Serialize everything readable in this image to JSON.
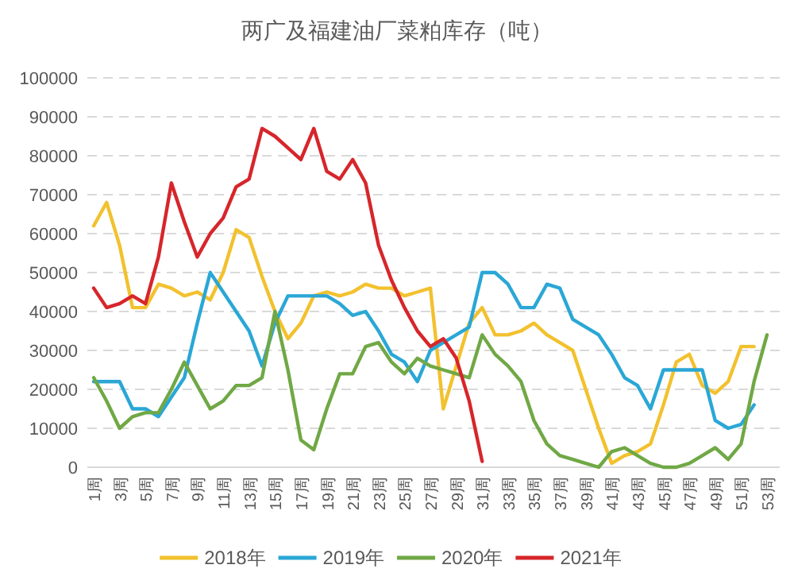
{
  "chart_data": {
    "type": "line",
    "title": "两广及福建油厂菜粕库存（吨）",
    "categories": [
      "1周",
      null,
      "3周",
      null,
      "5周",
      null,
      "7周",
      null,
      "9周",
      null,
      "11周",
      null,
      "13周",
      null,
      "15周",
      null,
      "17周",
      null,
      "19周",
      null,
      "21周",
      null,
      "23周",
      null,
      "25周",
      null,
      "27周",
      null,
      "29周",
      null,
      "31周",
      null,
      "33周",
      null,
      "35周",
      null,
      "37周",
      null,
      "39周",
      null,
      "41周",
      null,
      "43周",
      null,
      "45周",
      null,
      "47周",
      null,
      "49周",
      null,
      "51周",
      null,
      "53周"
    ],
    "series": [
      {
        "name": "2018年",
        "color": "#f2c12e",
        "values": [
          62000,
          68000,
          57000,
          41000,
          41000,
          47000,
          46000,
          44000,
          45000,
          43000,
          50000,
          61000,
          59000,
          49000,
          40000,
          33000,
          37000,
          44000,
          45000,
          44000,
          45000,
          47000,
          46000,
          46000,
          44000,
          45000,
          46000,
          15000,
          26000,
          37000,
          41000,
          34000,
          34000,
          35000,
          37000,
          34000,
          32000,
          30000,
          20000,
          10000,
          1000,
          3000,
          4000,
          6000,
          16000,
          27000,
          29000,
          21000,
          19000,
          22000,
          31000,
          31000,
          null
        ]
      },
      {
        "name": "2019年",
        "color": "#2aa7d6",
        "values": [
          22000,
          22000,
          22000,
          15000,
          15000,
          13000,
          18000,
          23000,
          37000,
          50000,
          45000,
          40000,
          35000,
          26000,
          37000,
          44000,
          44000,
          44000,
          44000,
          42000,
          39000,
          40000,
          35000,
          29000,
          27000,
          22000,
          30000,
          32000,
          34000,
          36000,
          50000,
          50000,
          47000,
          41000,
          41000,
          47000,
          46000,
          38000,
          36000,
          34000,
          29000,
          23000,
          21000,
          15000,
          25000,
          25000,
          25000,
          25000,
          12000,
          10000,
          11000,
          16000,
          null
        ]
      },
      {
        "name": "2020年",
        "color": "#70a845",
        "values": [
          23000,
          17000,
          10000,
          13000,
          14000,
          14000,
          20000,
          27000,
          21000,
          15000,
          17000,
          21000,
          21000,
          23000,
          40000,
          25000,
          7000,
          4500,
          15000,
          24000,
          24000,
          31000,
          32000,
          27000,
          24000,
          28000,
          26000,
          25000,
          24000,
          23000,
          34000,
          29000,
          26000,
          22000,
          12000,
          6000,
          3000,
          2000,
          1000,
          0,
          4000,
          5000,
          3000,
          1000,
          0,
          0,
          1000,
          3000,
          5000,
          2000,
          6000,
          22000,
          34000
        ]
      },
      {
        "name": "2021年",
        "color": "#d6262b",
        "values": [
          46000,
          41000,
          42000,
          44000,
          42000,
          54000,
          73000,
          63000,
          54000,
          60000,
          64000,
          72000,
          74000,
          87000,
          85000,
          82000,
          79000,
          87000,
          76000,
          74000,
          79000,
          73000,
          57000,
          48000,
          41000,
          35000,
          31000,
          33000,
          28000,
          17000,
          1500,
          null,
          null,
          null,
          null,
          null,
          null,
          null,
          null,
          null,
          null,
          null,
          null,
          null,
          null,
          null,
          null,
          null,
          null,
          null,
          null,
          null,
          null
        ]
      }
    ],
    "ylim": [
      0,
      100000
    ],
    "yticks": [
      0,
      10000,
      20000,
      30000,
      40000,
      50000,
      60000,
      70000,
      80000,
      90000,
      100000
    ],
    "grid": "y",
    "legend": "bottom",
    "marker": "none",
    "line_style": "solid"
  }
}
